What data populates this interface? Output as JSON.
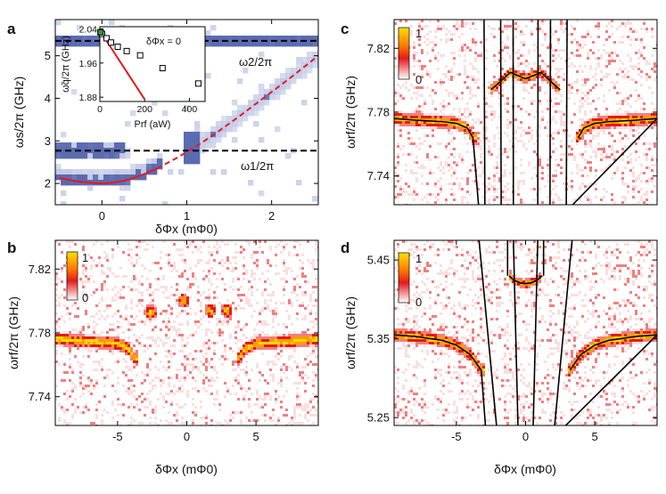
{
  "colors": {
    "map_blue": "#5a6bb0",
    "map_blue_light": "#b8c0e2",
    "heat_red": "#e41a1c",
    "heat_yellow": "#ffd700",
    "fit_red": "#e41a1c",
    "fit_black": "#000000",
    "inset_green": "#2ca02c"
  },
  "chart_data": [
    {
      "panel": "a",
      "type": "heatmap",
      "xlabel": "δΦx (mΦ0)",
      "ylabel": "ωs/2π (GHz)",
      "xlim": [
        -0.55,
        2.55
      ],
      "ylim": [
        1.5,
        5.85
      ],
      "xticks": [
        "0",
        "1",
        "2"
      ],
      "xtick_values": [
        0,
        1,
        2
      ],
      "yticks": [
        "2",
        "3",
        "4",
        "5"
      ],
      "ytick_values": [
        2,
        3,
        4,
        5
      ],
      "colormap": "white-to-blue",
      "annotations": [
        {
          "text": "ω2/2π",
          "value_ghz": 5.35
        },
        {
          "text": "ω1/2π",
          "value_ghz": 2.77
        }
      ],
      "reference_lines": [
        {
          "label": "ω1/2π",
          "y": 2.77,
          "style": "dashed",
          "color": "#000000"
        },
        {
          "label": "ω2/2π",
          "y": 5.35,
          "style": "dashed",
          "color": "#000000"
        }
      ],
      "fit_curve": {
        "color": "#e41a1c",
        "solid_x": [
          -0.5,
          -0.3,
          -0.1,
          0.0,
          0.1,
          0.3,
          0.5,
          0.65
        ],
        "solid_y": [
          2.13,
          2.05,
          2.01,
          2.0,
          2.01,
          2.08,
          2.22,
          2.35
        ],
        "dashed_x": [
          0.65,
          0.9,
          1.1,
          1.3,
          1.6,
          1.9,
          2.2,
          2.55
        ],
        "dashed_y": [
          2.35,
          2.62,
          2.86,
          3.12,
          3.55,
          4.0,
          4.45,
          5.0
        ]
      },
      "inset": {
        "title": "δΦx = 0",
        "xlabel": "Prf (aW)",
        "ylabel": "ω̃q/2π (GHz)",
        "xlim": [
          0,
          470
        ],
        "ylim": [
          1.87,
          2.045
        ],
        "xticks": [
          "0",
          "200",
          "400"
        ],
        "xtick_values": [
          0,
          200,
          400
        ],
        "yticks": [
          "2.04",
          "1.96",
          "1.88"
        ],
        "ytick_values": [
          2.04,
          1.96,
          1.88
        ],
        "points_x": [
          3,
          10,
          30,
          50,
          80,
          120,
          180,
          280,
          440
        ],
        "points_y": [
          2.032,
          2.028,
          2.018,
          2.008,
          1.998,
          1.988,
          1.978,
          1.948,
          1.912
        ],
        "highlight_point": {
          "x": 3,
          "y": 2.032,
          "color": "#2ca02c"
        },
        "fit_line": {
          "x": [
            0,
            200
          ],
          "y": [
            2.036,
            1.875
          ],
          "color": "#e41a1c"
        }
      }
    },
    {
      "panel": "b",
      "type": "heatmap",
      "xlabel": "δΦx (mΦ0)",
      "ylabel": "ωrf/2π (GHz)",
      "xlim": [
        -9.5,
        9.5
      ],
      "ylim": [
        7.722,
        7.838
      ],
      "xticks": [
        "-5",
        "0",
        "5"
      ],
      "xtick_values": [
        -5,
        0,
        5
      ],
      "yticks": [
        "7.82",
        "7.78",
        "7.74"
      ],
      "ytick_values": [
        7.82,
        7.78,
        7.74
      ],
      "colorbar": {
        "min_label": "0",
        "max_label": "1"
      },
      "resonance_x": [
        -9.5,
        -8,
        -6,
        -5,
        -4.2,
        -3.8,
        3.8,
        4.2,
        5,
        6,
        8,
        9.5
      ],
      "resonance_y": [
        7.776,
        7.775,
        7.774,
        7.773,
        7.77,
        7.764,
        7.764,
        7.77,
        7.773,
        7.774,
        7.775,
        7.776
      ],
      "spots_x": [
        -2.6,
        -0.2,
        1.7,
        2.9
      ],
      "spots_y": [
        7.793,
        7.8,
        7.794,
        7.794
      ]
    },
    {
      "panel": "c",
      "type": "heatmap",
      "xlabel": "",
      "ylabel": "ωrf/2π (GHz)",
      "xlim": [
        -9.5,
        9.5
      ],
      "ylim": [
        7.722,
        7.838
      ],
      "xticks": [],
      "yticks": [
        "7.82",
        "7.78",
        "7.74"
      ],
      "ytick_values": [
        7.82,
        7.78,
        7.74
      ],
      "colorbar": {
        "min_label": "0",
        "max_label": "1"
      },
      "fit_color": "#000000",
      "resonance_x": [
        -9.5,
        -8,
        -6,
        -5,
        -4.2,
        -3.8,
        3.8,
        4.2,
        5,
        6,
        8,
        9.5
      ],
      "resonance_y": [
        7.776,
        7.775,
        7.774,
        7.773,
        7.77,
        7.764,
        7.764,
        7.77,
        7.773,
        7.774,
        7.775,
        7.776
      ],
      "upper_branch_x": [
        -2.5,
        -2.1,
        -1.6,
        -1.1,
        -0.6,
        0,
        0.6,
        1.1,
        1.6,
        2.1,
        2.5
      ],
      "upper_branch_y": [
        7.794,
        7.797,
        7.801,
        7.805,
        7.803,
        7.801,
        7.803,
        7.805,
        7.801,
        7.797,
        7.794
      ]
    },
    {
      "panel": "d",
      "type": "heatmap",
      "xlabel": "δΦx (mΦ0)",
      "ylabel": "ωrf/2π (GHz)",
      "xlim": [
        -9.5,
        9.5
      ],
      "ylim": [
        5.24,
        5.475
      ],
      "xticks": [
        "-5",
        "0",
        "5"
      ],
      "xtick_values": [
        -5,
        0,
        5
      ],
      "yticks": [
        "5.45",
        "5.35",
        "5.25"
      ],
      "ytick_values": [
        5.45,
        5.35,
        5.25
      ],
      "colorbar": {
        "min_label": "0",
        "max_label": "1"
      },
      "fit_color": "#000000",
      "resonance_x": [
        -9.5,
        -8,
        -6,
        -5,
        -4,
        -3.2,
        3.2,
        4,
        5,
        6,
        8,
        9.5
      ],
      "resonance_y": [
        5.355,
        5.353,
        5.348,
        5.342,
        5.33,
        5.31,
        5.31,
        5.33,
        5.342,
        5.348,
        5.353,
        5.355
      ],
      "upper_branch_x": [
        -1.2,
        -0.8,
        -0.4,
        0,
        0.4,
        0.8,
        1.2
      ],
      "upper_branch_y": [
        5.43,
        5.424,
        5.421,
        5.42,
        5.421,
        5.424,
        5.43
      ]
    }
  ]
}
